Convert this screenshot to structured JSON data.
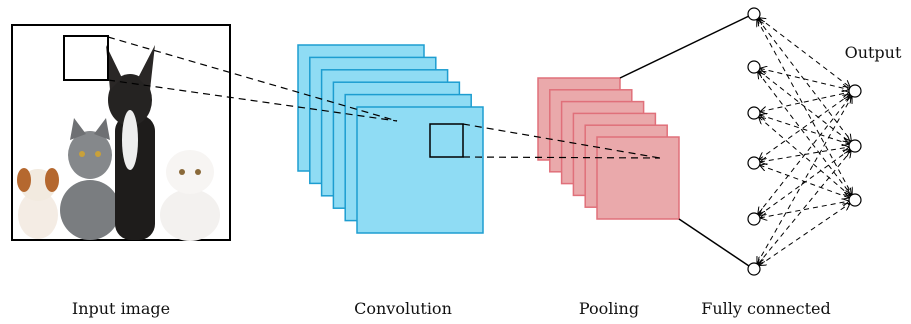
{
  "labels": {
    "input": "Input image",
    "convolution": "Convolution",
    "pooling": "Pooling",
    "fully_connected": "Fully connected",
    "output": "Output"
  }
}
